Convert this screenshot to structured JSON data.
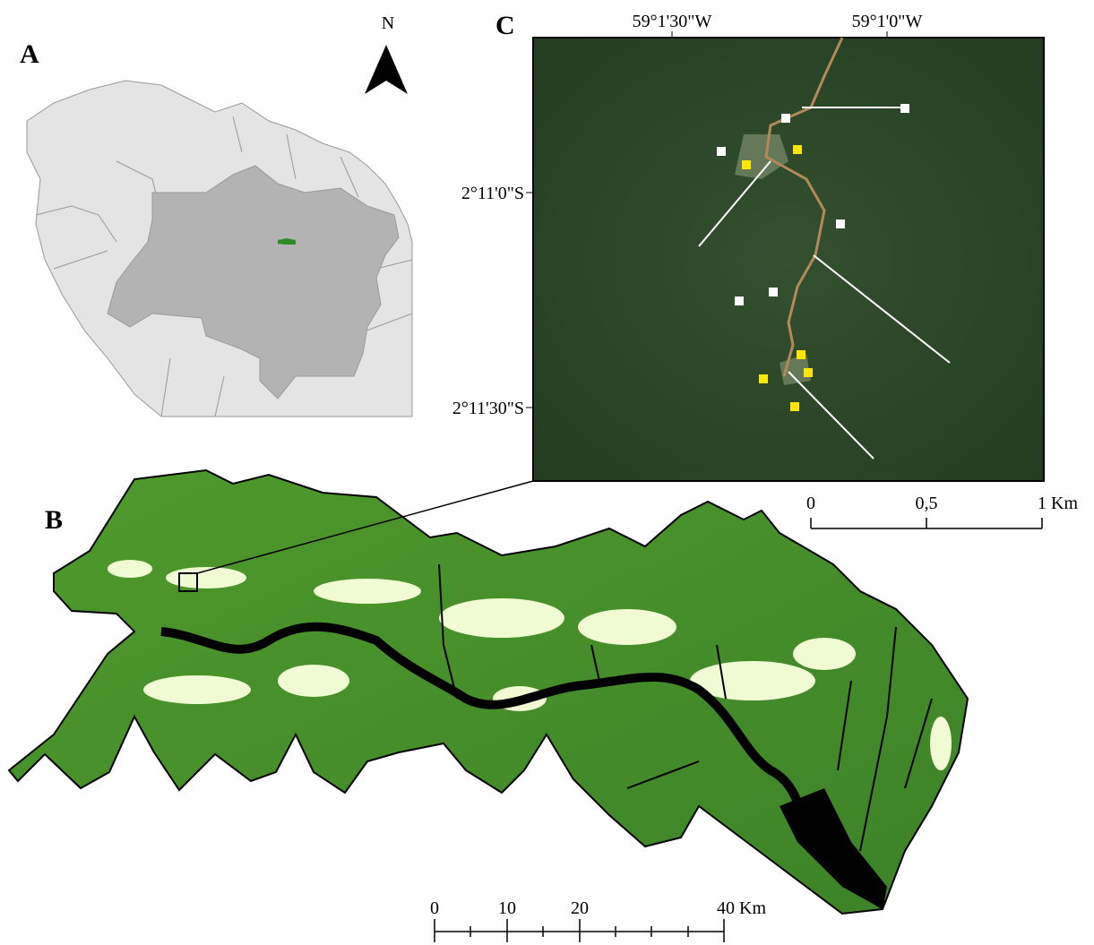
{
  "panels": {
    "a": {
      "label": "A",
      "north": "N"
    },
    "b": {
      "label": "B",
      "scale": [
        "0",
        "10",
        "20",
        "40 Km"
      ]
    },
    "c": {
      "label": "C",
      "lon_labels": [
        "59°1'30\"W",
        "59°1'0\"W"
      ],
      "lat_labels": [
        "2°11'0\"S",
        "2°11'30\"S"
      ],
      "scale": [
        "0",
        "0,5",
        "1 Km"
      ]
    }
  }
}
